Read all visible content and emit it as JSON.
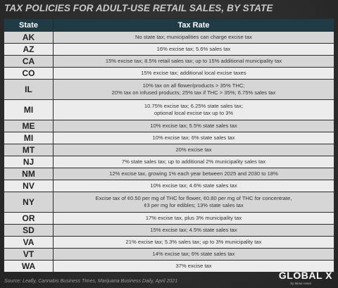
{
  "header": {
    "title": "TAX POLICIES FOR ADULT-USE RETAIL SALES, BY STATE"
  },
  "table": {
    "columns": [
      "State",
      "Tax Rate"
    ],
    "rows": [
      [
        "AK",
        [
          "No state tax; municipalities can charge excise tax"
        ]
      ],
      [
        "AZ",
        [
          "16% excise tax; 5.6% sales tax"
        ]
      ],
      [
        "CA",
        [
          "15% excise tax; 8.5% retail sales tax; up to 15% additional municipality tax"
        ]
      ],
      [
        "CO",
        [
          "15% excise tax; additional local excise taxes"
        ]
      ],
      [
        "IL",
        [
          "10% tax on all flower/products > 35% THC;",
          "20% tax on infused products; 25% tax if THC > 35%; 6.75% sales tax"
        ]
      ],
      [
        "MI",
        [
          "10.75% excise tax; 6.25% state sales tax;",
          "optional local excise tax up to 3%"
        ]
      ],
      [
        "ME",
        [
          "10% excise tax; 5.5% state sales tax"
        ]
      ],
      [
        "MI",
        [
          "10% excise tax; 6% state sales tax"
        ]
      ],
      [
        "MT",
        [
          "20% excise tax"
        ]
      ],
      [
        "NJ",
        [
          "7% state sales tax; up to additional 2% municipality sales tax"
        ]
      ],
      [
        "NM",
        [
          "12% excise tax, growing 1% each year between 2025 and 2030 to 18%"
        ]
      ],
      [
        "NV",
        [
          "10% excise tax; 4.6% state sales tax"
        ]
      ],
      [
        "NY",
        [
          "Excise tax of ¢0.50 per mg of THC for flower, ¢0.80 per mg of THC for concentrate,",
          "¢3 per mg for edibles; 13% state sales tax"
        ]
      ],
      [
        "OR",
        [
          "17% excise tax, plus 3% municipality tax"
        ]
      ],
      [
        "SD",
        [
          "15% excise tax; 4.5% state sales tax"
        ]
      ],
      [
        "VA",
        [
          "21% excise tax; 5.3% sales tax; up to 3% municipality tax"
        ]
      ],
      [
        "VT",
        [
          "14% excise tax; 6% state sales tax"
        ]
      ],
      [
        "WA",
        [
          "37% excise tax"
        ]
      ]
    ]
  },
  "footer": {
    "source": "Source: Leafly, Cannabis Business Times, Marijuana Business Daily, April 2021",
    "logo": "GLOBAL X",
    "logo_sub": "by Mirae Asset"
  }
}
